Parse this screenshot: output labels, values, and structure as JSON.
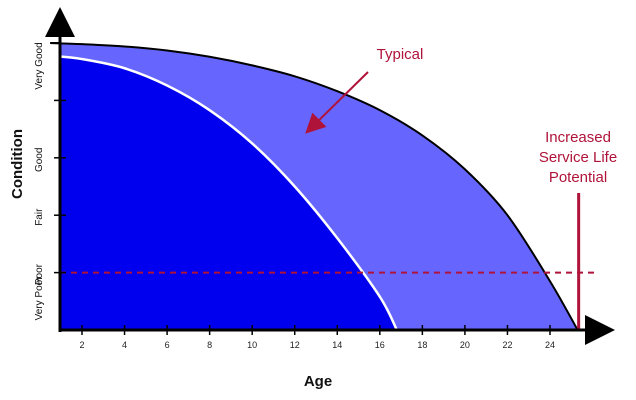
{
  "chart_data": {
    "type": "area",
    "title": "",
    "xlabel": "Age",
    "ylabel": "Condition",
    "x_ticks": [
      2,
      4,
      6,
      8,
      10,
      12,
      14,
      16,
      18,
      20,
      22,
      24
    ],
    "x_range": [
      0.5,
      25.8
    ],
    "y_categories": [
      "Very Poor",
      "Poor",
      "Fair",
      "Good",
      "Very Good"
    ],
    "y_range": [
      0,
      5
    ],
    "threshold_condition": 1.0,
    "series": [
      {
        "name": "Typical",
        "color": "#0000ee",
        "x": [
          0.5,
          2,
          4,
          6,
          8,
          10,
          12,
          14,
          16,
          16.8
        ],
        "y": [
          4.78,
          4.72,
          4.56,
          4.26,
          3.83,
          3.25,
          2.5,
          1.6,
          0.58,
          0.0
        ]
      },
      {
        "name": "Increased Service Life Potential",
        "color": "#6666ff",
        "x": [
          0.5,
          2,
          4,
          6,
          8,
          10,
          12,
          14,
          16,
          18,
          20,
          22,
          24,
          25.3
        ],
        "y": [
          5.0,
          4.98,
          4.94,
          4.87,
          4.76,
          4.61,
          4.42,
          4.16,
          3.83,
          3.39,
          2.8,
          2.0,
          0.85,
          0.0
        ]
      }
    ],
    "annotations": [
      {
        "text": "Typical",
        "color": "#b0133a"
      },
      {
        "text": "Increased\nService Life\nPotential",
        "color": "#b0133a"
      }
    ],
    "grid": false,
    "legend": "none"
  },
  "colors": {
    "typical_fill": "#0000ee",
    "increased_fill": "#6666ff",
    "annotation": "#b0133a",
    "axis": "#000000"
  }
}
